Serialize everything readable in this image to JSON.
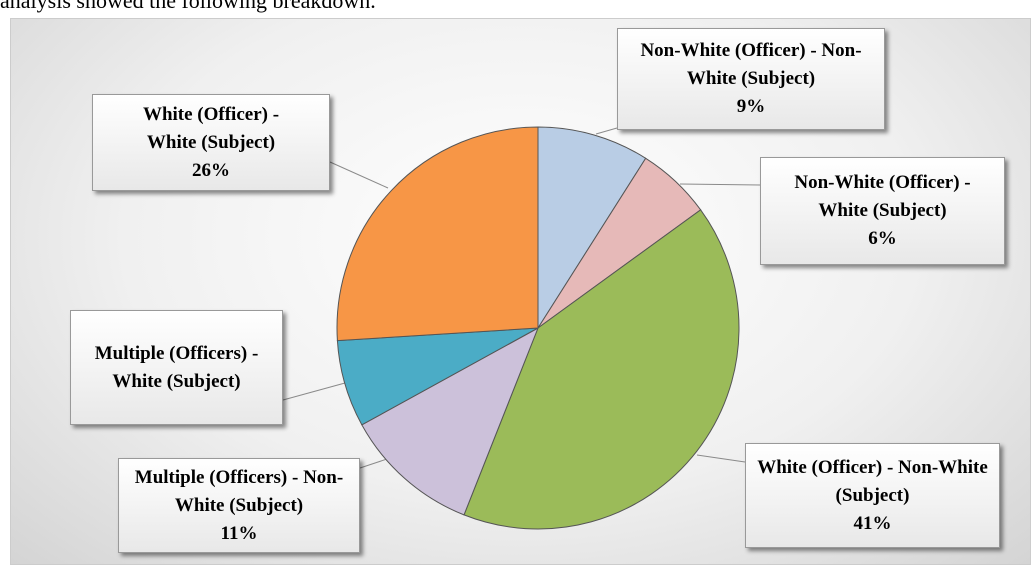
{
  "intro_text": "analysis showed the following breakdown.",
  "chart_data": {
    "type": "pie",
    "categories": [
      "Non-White (Officer) - Non-White (Subject)",
      "Non-White (Officer) - White (Subject)",
      "White (Officer) - Non-White (Subject)",
      "Multiple (Officers) - Non-White (Subject)",
      "Multiple (Officers) - White (Subject)",
      "White (Officer) - White (Subject)"
    ],
    "values": [
      9,
      6,
      41,
      11,
      7,
      26
    ],
    "value_labels": [
      "9%",
      "6%",
      "41%",
      "11%",
      null,
      "26%"
    ],
    "colors": [
      "#b9cde5",
      "#e6b9b8",
      "#9bbb59",
      "#ccc1da",
      "#4bacc6",
      "#f79646"
    ]
  }
}
